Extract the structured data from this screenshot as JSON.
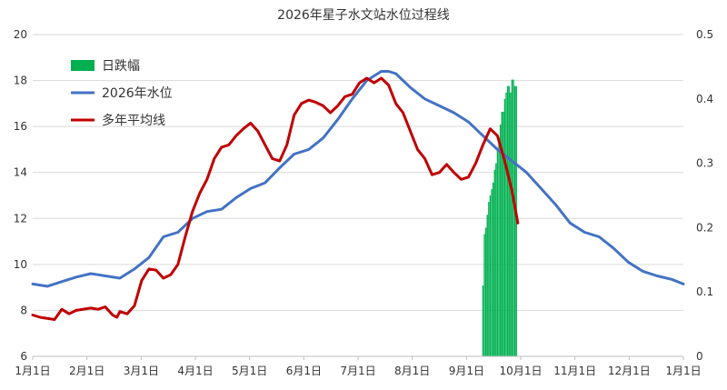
{
  "chart_data": {
    "type": "line",
    "title": "2026年星子水文站水位过程线",
    "x_labels": [
      "1月1日",
      "2月1日",
      "3月1日",
      "4月1日",
      "5月1日",
      "6月1日",
      "7月1日",
      "8月1日",
      "9月1日",
      "10月1日",
      "11月1日",
      "12月1日",
      "1月1日"
    ],
    "y_left": {
      "ylim": [
        6,
        20
      ],
      "ticks": [
        "6",
        "8",
        "10",
        "12",
        "14",
        "16",
        "18",
        "20"
      ]
    },
    "y_right": {
      "ylim": [
        0,
        0.5
      ],
      "ticks": [
        "0",
        "0.1",
        "0.2",
        "0.3",
        "0.4",
        "0.5"
      ]
    },
    "grid": true,
    "legend_position": "top-left",
    "colors": {
      "water_level_2026": "#4472C4",
      "multi_year_mean": "#C00000",
      "daily_drop": "#00B050"
    },
    "series": [
      {
        "name": "2026年水位",
        "axis": "left",
        "color": "#4472C4",
        "points": [
          [
            0,
            9.15
          ],
          [
            10,
            9.05
          ],
          [
            20,
            9.25
          ],
          [
            30,
            9.45
          ],
          [
            40,
            9.6
          ],
          [
            45,
            9.55
          ],
          [
            50,
            9.5
          ],
          [
            60,
            9.4
          ],
          [
            70,
            9.8
          ],
          [
            80,
            10.3
          ],
          [
            90,
            11.2
          ],
          [
            100,
            11.4
          ],
          [
            110,
            12.0
          ],
          [
            120,
            12.3
          ],
          [
            130,
            12.4
          ],
          [
            140,
            12.9
          ],
          [
            150,
            13.3
          ],
          [
            160,
            13.55
          ],
          [
            170,
            14.2
          ],
          [
            180,
            14.8
          ],
          [
            190,
            15.0
          ],
          [
            200,
            15.5
          ],
          [
            210,
            16.3
          ],
          [
            220,
            17.2
          ],
          [
            230,
            18.0
          ],
          [
            240,
            18.4
          ],
          [
            245,
            18.4
          ],
          [
            250,
            18.3
          ],
          [
            260,
            17.7
          ],
          [
            270,
            17.2
          ],
          [
            280,
            16.9
          ],
          [
            290,
            16.6
          ],
          [
            300,
            16.2
          ],
          [
            310,
            15.6
          ],
          [
            320,
            15.0
          ],
          [
            330,
            14.5
          ],
          [
            340,
            14.0
          ],
          [
            350,
            13.3
          ],
          [
            360,
            12.6
          ],
          [
            370,
            11.8
          ],
          [
            380,
            11.4
          ],
          [
            390,
            11.2
          ],
          [
            400,
            10.7
          ],
          [
            410,
            10.1
          ],
          [
            420,
            9.7
          ],
          [
            430,
            9.5
          ],
          [
            440,
            9.35
          ],
          [
            448,
            9.15
          ]
        ]
      },
      {
        "name": "多年平均线",
        "axis": "left",
        "color": "#C00000",
        "points": [
          [
            0,
            7.8
          ],
          [
            5,
            7.7
          ],
          [
            15,
            7.6
          ],
          [
            20,
            8.05
          ],
          [
            25,
            7.85
          ],
          [
            30,
            8.0
          ],
          [
            40,
            8.1
          ],
          [
            45,
            8.05
          ],
          [
            50,
            8.15
          ],
          [
            55,
            7.8
          ],
          [
            58,
            7.7
          ],
          [
            60,
            7.95
          ],
          [
            65,
            7.85
          ],
          [
            70,
            8.2
          ],
          [
            75,
            9.3
          ],
          [
            80,
            9.8
          ],
          [
            85,
            9.75
          ],
          [
            90,
            9.4
          ],
          [
            95,
            9.55
          ],
          [
            100,
            10.0
          ],
          [
            105,
            11.2
          ],
          [
            110,
            12.3
          ],
          [
            115,
            13.1
          ],
          [
            120,
            13.7
          ],
          [
            125,
            14.6
          ],
          [
            130,
            15.1
          ],
          [
            135,
            15.2
          ],
          [
            140,
            15.6
          ],
          [
            145,
            15.9
          ],
          [
            150,
            16.15
          ],
          [
            155,
            15.8
          ],
          [
            160,
            15.2
          ],
          [
            165,
            14.6
          ],
          [
            170,
            14.5
          ],
          [
            175,
            15.2
          ],
          [
            180,
            16.5
          ],
          [
            185,
            17.0
          ],
          [
            190,
            17.15
          ],
          [
            195,
            17.05
          ],
          [
            200,
            16.9
          ],
          [
            205,
            16.6
          ],
          [
            210,
            16.9
          ],
          [
            215,
            17.3
          ],
          [
            220,
            17.4
          ],
          [
            225,
            17.9
          ],
          [
            230,
            18.1
          ],
          [
            235,
            17.9
          ],
          [
            240,
            18.1
          ],
          [
            245,
            17.8
          ],
          [
            250,
            17.0
          ],
          [
            255,
            16.6
          ],
          [
            260,
            15.8
          ],
          [
            265,
            15.0
          ],
          [
            270,
            14.6
          ],
          [
            275,
            13.9
          ],
          [
            280,
            14.0
          ],
          [
            285,
            14.35
          ],
          [
            290,
            14.0
          ],
          [
            295,
            13.7
          ],
          [
            300,
            13.8
          ],
          [
            305,
            14.4
          ],
          [
            310,
            15.2
          ],
          [
            315,
            15.9
          ],
          [
            320,
            15.6
          ],
          [
            325,
            14.5
          ],
          [
            330,
            13.2
          ],
          [
            334,
            11.8
          ]
        ]
      },
      {
        "name": "日跌幅",
        "axis": "right",
        "type": "bar",
        "color": "#00B050",
        "x": [
          310,
          311,
          312,
          313,
          314,
          315,
          316,
          317,
          318,
          319,
          320,
          321,
          322,
          323,
          324,
          325,
          326,
          327,
          328,
          329,
          330,
          331,
          332,
          333
        ],
        "values": [
          0.11,
          0.19,
          0.2,
          0.22,
          0.24,
          0.25,
          0.26,
          0.27,
          0.29,
          0.3,
          0.32,
          0.34,
          0.36,
          0.38,
          0.38,
          0.4,
          0.41,
          0.42,
          0.42,
          0.41,
          0.43,
          0.43,
          0.42,
          0.42
        ]
      }
    ]
  }
}
